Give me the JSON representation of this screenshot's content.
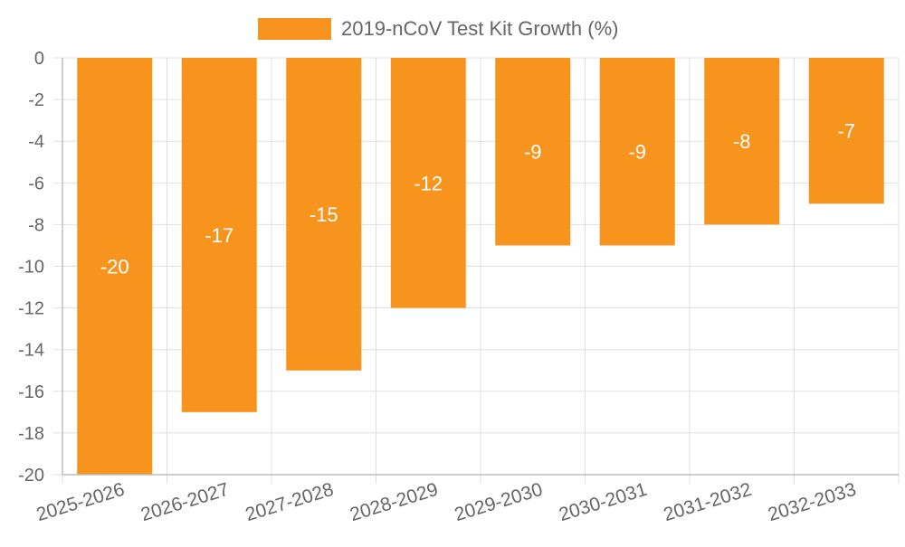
{
  "chart_data": {
    "type": "bar",
    "categories": [
      "2025-2026",
      "2026-2027",
      "2027-2028",
      "2028-2029",
      "2029-2030",
      "2030-2031",
      "2031-2032",
      "2032-2033"
    ],
    "series": [
      {
        "name": "2019-nCoV Test Kit Growth (%)",
        "values": [
          -20,
          -17,
          -15,
          -12,
          -9,
          -9,
          -8,
          -7
        ],
        "color": "#f7941d"
      }
    ],
    "data_labels": [
      "-20",
      "-17",
      "-15",
      "-12",
      "-9",
      "-9",
      "-8",
      "-7"
    ],
    "ylim": [
      -20,
      0
    ],
    "yticks": [
      0,
      -2,
      -4,
      -6,
      -8,
      -10,
      -12,
      -14,
      -16,
      -18,
      -20
    ],
    "ytick_labels": [
      "0",
      "-2",
      "-4",
      "-6",
      "-8",
      "-10",
      "-12",
      "-14",
      "-16",
      "-18",
      "-20"
    ],
    "grid": true,
    "legend_position": "top-center",
    "title": "",
    "xlabel": "",
    "ylabel": ""
  }
}
